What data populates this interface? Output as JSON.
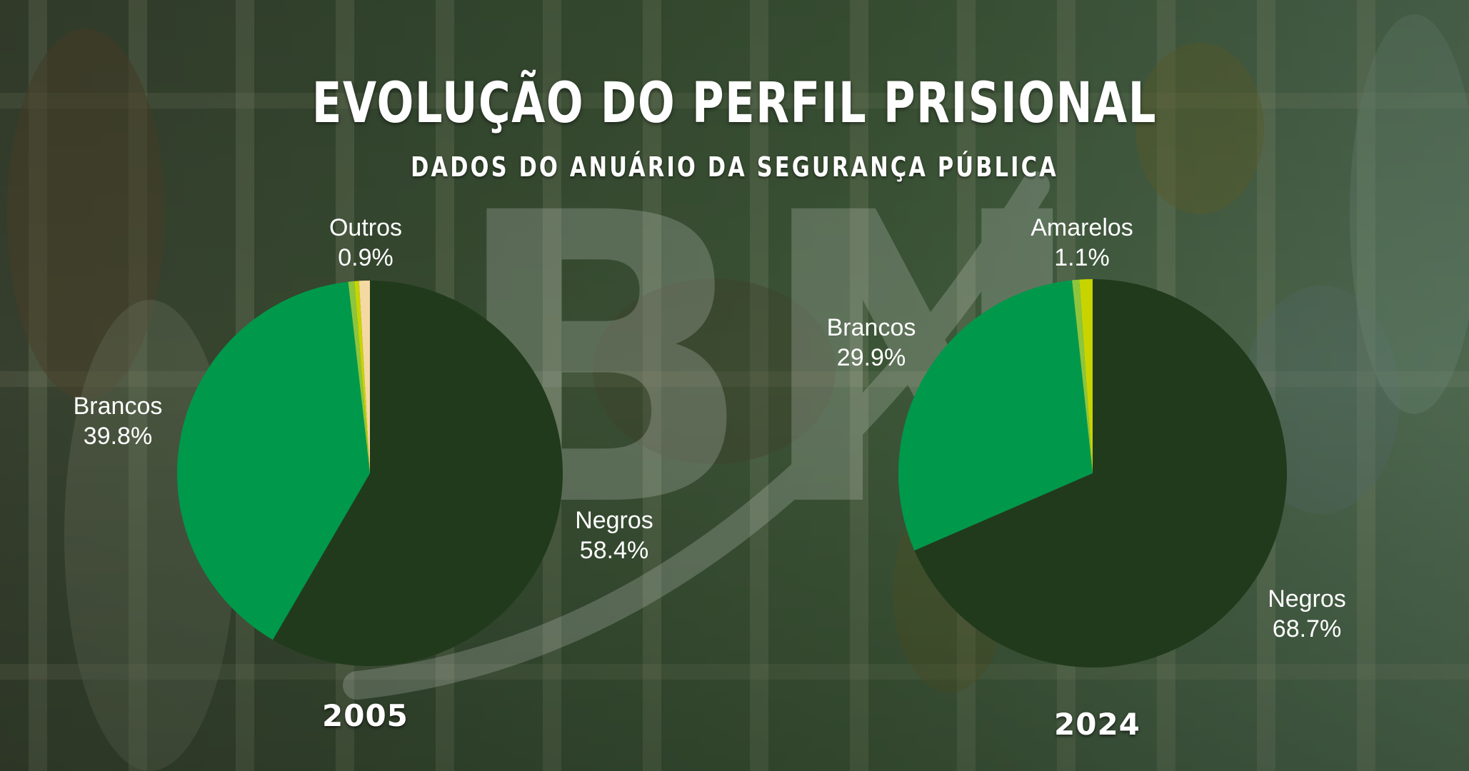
{
  "header": {
    "title": "EVOLUÇÃO DO PERFIL PRISIONAL",
    "subtitle": "DADOS DO ANUÁRIO DA SEGURANÇA PÚBLICA"
  },
  "watermark": {
    "text": "BN"
  },
  "colors": {
    "negros": "#213a1c",
    "brancos": "#00984a",
    "minor_1": "#8cc63f",
    "minor_2": "#c8d400",
    "minor_3": "#f5d9a3",
    "background_tint": "#2f4a2c"
  },
  "chart_data": [
    {
      "type": "pie",
      "title": "",
      "year": "2005",
      "slices": [
        {
          "label": "Negros",
          "value": 58.4,
          "display": "58.4%",
          "color": "#213a1c"
        },
        {
          "label": "Brancos",
          "value": 39.8,
          "display": "39.8%",
          "color": "#00984a"
        },
        {
          "label": "",
          "value": 0.5,
          "display": "",
          "color": "#8cc63f"
        },
        {
          "label": "",
          "value": 0.4,
          "display": "",
          "color": "#c8d400"
        },
        {
          "label": "Outros",
          "value": 0.9,
          "display": "0.9%",
          "color": "#f5d9a3"
        }
      ]
    },
    {
      "type": "pie",
      "title": "",
      "year": "2024",
      "slices": [
        {
          "label": "Negros",
          "value": 68.7,
          "display": "68.7%",
          "color": "#213a1c"
        },
        {
          "label": "Brancos",
          "value": 29.9,
          "display": "29.9%",
          "color": "#00984a"
        },
        {
          "label": "",
          "value": 0.6,
          "display": "",
          "color": "#8cc63f"
        },
        {
          "label": "Amarelos",
          "value": 1.1,
          "display": "1.1%",
          "color": "#c8d400"
        }
      ]
    }
  ]
}
